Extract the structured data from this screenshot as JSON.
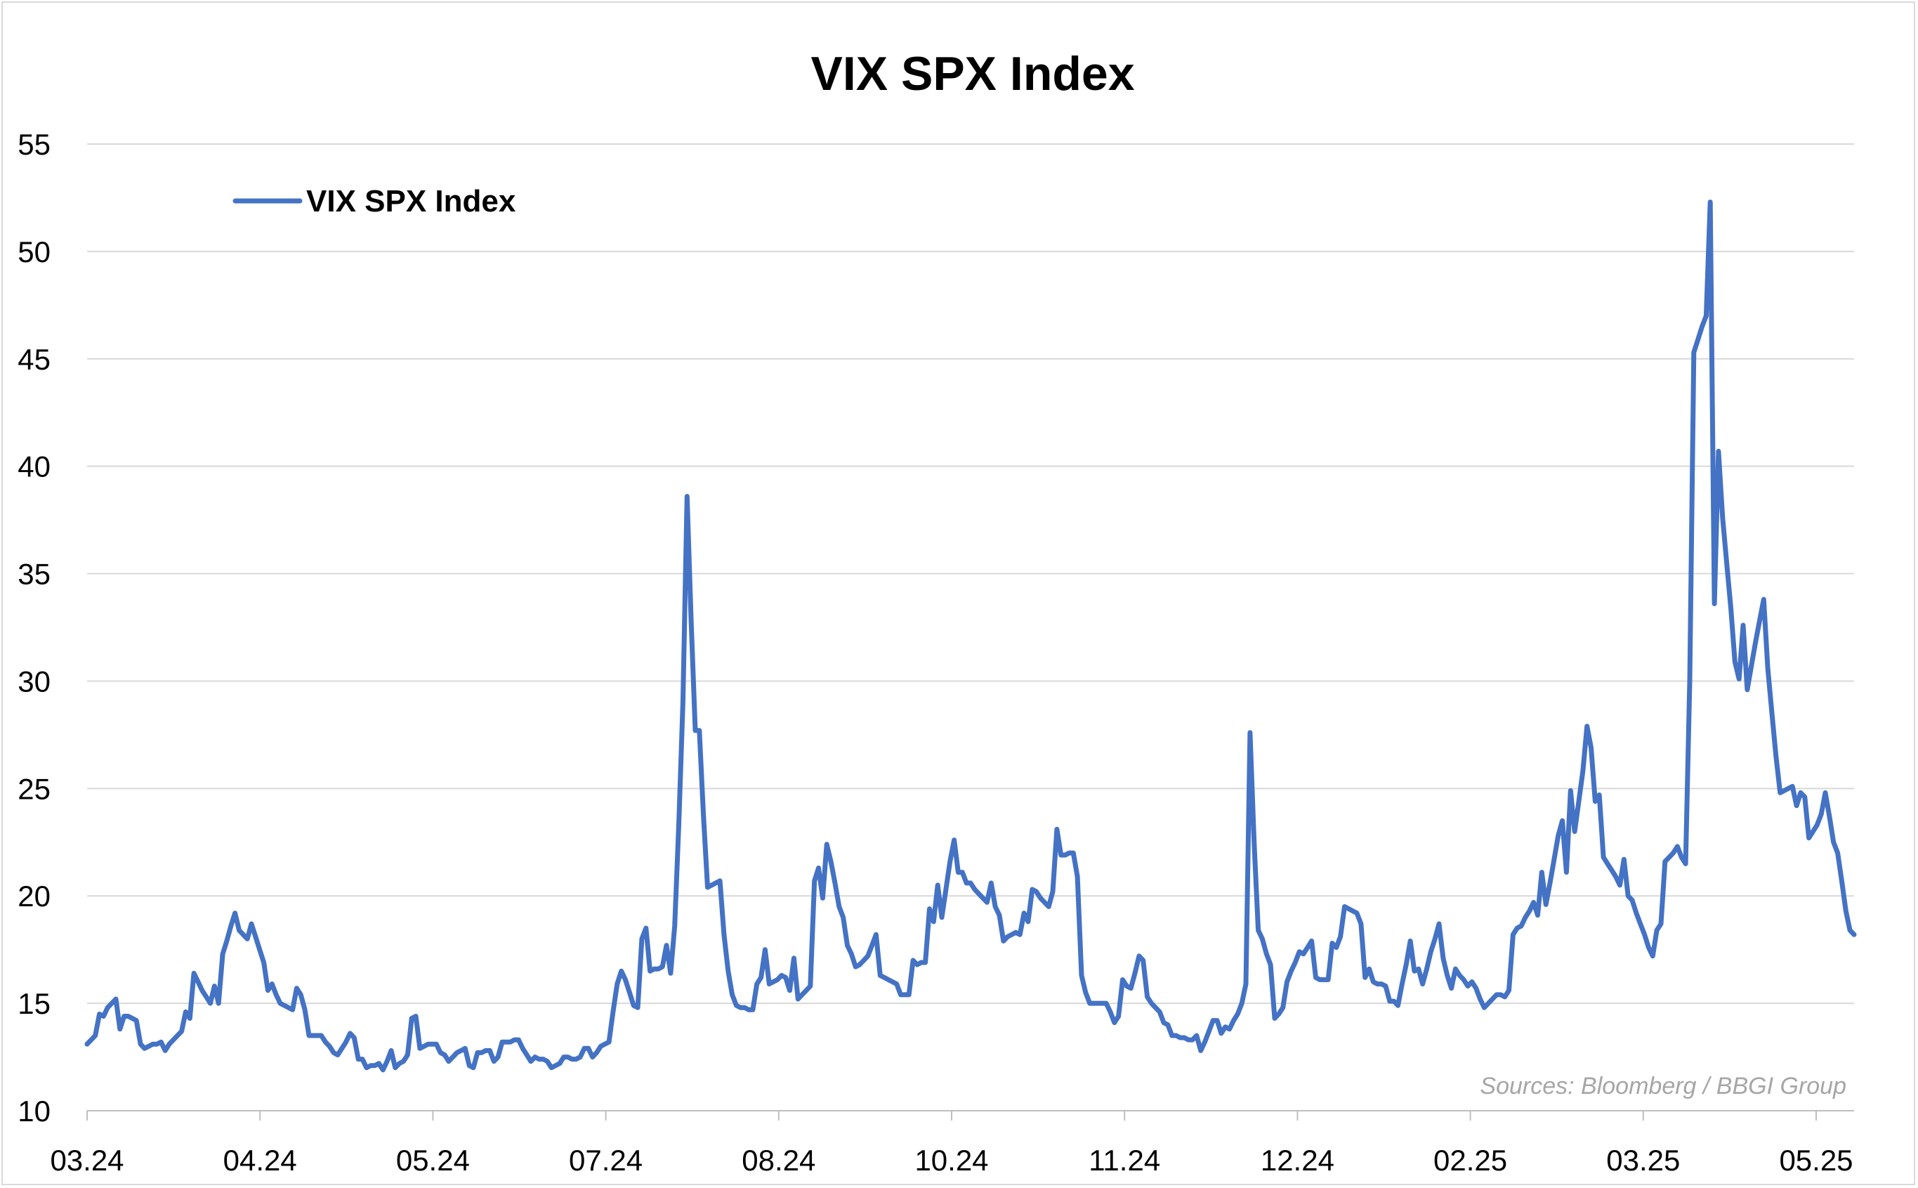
{
  "chart_data": {
    "type": "line",
    "title": "VIX SPX Index",
    "xlabel": "",
    "ylabel": "",
    "ylim": [
      10,
      55
    ],
    "yticks": [
      10,
      15,
      20,
      25,
      30,
      35,
      40,
      45,
      50,
      55
    ],
    "xtick_labels": [
      "03.24",
      "04.24",
      "05.24",
      "07.24",
      "08.24",
      "10.24",
      "11.24",
      "12.24",
      "02.25",
      "03.25",
      "05.25"
    ],
    "grid": "horizontal",
    "legend_position": "top-left",
    "series_color": "#4472C4",
    "series": [
      {
        "name": "VIX SPX Index",
        "values": [
          13.1,
          13.3,
          13.5,
          14.5,
          14.4,
          14.8,
          15.0,
          15.2,
          13.8,
          14.4,
          14.4,
          14.3,
          14.2,
          13.1,
          12.9,
          13.0,
          13.1,
          13.1,
          13.2,
          12.8,
          13.1,
          13.3,
          13.5,
          13.7,
          14.6,
          14.3,
          16.4,
          16.0,
          15.6,
          15.3,
          15.0,
          15.8,
          15.0,
          17.3,
          17.9,
          18.6,
          19.2,
          18.4,
          18.2,
          18.0,
          18.7,
          18.1,
          17.5,
          16.9,
          15.6,
          15.9,
          15.4,
          15.0,
          14.9,
          14.8,
          14.7,
          15.7,
          15.4,
          14.7,
          13.5,
          13.5,
          13.5,
          13.5,
          13.2,
          13.0,
          12.7,
          12.6,
          12.9,
          13.2,
          13.6,
          13.4,
          12.4,
          12.4,
          12.0,
          12.1,
          12.1,
          12.2,
          11.9,
          12.3,
          12.8,
          12.0,
          12.2,
          12.3,
          12.6,
          14.3,
          14.4,
          12.9,
          13.0,
          13.1,
          13.1,
          13.1,
          12.7,
          12.6,
          12.3,
          12.5,
          12.7,
          12.8,
          12.9,
          12.1,
          12.0,
          12.7,
          12.7,
          12.8,
          12.8,
          12.3,
          12.5,
          13.2,
          13.2,
          13.2,
          13.3,
          13.3,
          12.9,
          12.6,
          12.3,
          12.5,
          12.4,
          12.4,
          12.3,
          12.0,
          12.1,
          12.2,
          12.5,
          12.5,
          12.4,
          12.4,
          12.5,
          12.9,
          12.9,
          12.5,
          12.7,
          13.0,
          13.1,
          13.2,
          14.6,
          15.9,
          16.5,
          16.1,
          15.5,
          14.9,
          14.8,
          18.0,
          18.5,
          16.5,
          16.6,
          16.6,
          16.7,
          17.7,
          16.4,
          18.6,
          23.4,
          29.0,
          38.6,
          32.8,
          27.7,
          27.7,
          23.7,
          20.4,
          20.5,
          20.6,
          20.7,
          18.2,
          16.5,
          15.4,
          14.9,
          14.8,
          14.8,
          14.7,
          14.7,
          15.9,
          16.2,
          17.5,
          15.9,
          16.0,
          16.1,
          16.3,
          16.2,
          15.6,
          17.1,
          15.2,
          15.4,
          15.6,
          15.8,
          20.7,
          21.3,
          19.9,
          22.4,
          21.6,
          20.6,
          19.5,
          19.0,
          17.7,
          17.3,
          16.7,
          16.8,
          17.0,
          17.2,
          17.7,
          18.2,
          16.3,
          16.2,
          16.1,
          16.0,
          15.9,
          15.4,
          15.4,
          15.4,
          17.0,
          16.8,
          16.9,
          16.9,
          19.4,
          18.8,
          20.5,
          19.0,
          20.3,
          21.6,
          22.6,
          21.1,
          21.1,
          20.6,
          20.6,
          20.3,
          20.1,
          19.9,
          19.7,
          20.6,
          19.5,
          19.1,
          17.9,
          18.1,
          18.2,
          18.3,
          18.2,
          19.2,
          18.8,
          20.3,
          20.2,
          19.9,
          19.7,
          19.5,
          20.2,
          23.1,
          21.9,
          21.9,
          22.0,
          22.0,
          20.9,
          16.3,
          15.5,
          15.0,
          15.0,
          15.0,
          15.0,
          15.0,
          14.6,
          14.1,
          14.4,
          16.1,
          15.8,
          15.7,
          16.4,
          17.2,
          17.0,
          15.3,
          15.0,
          14.8,
          14.6,
          14.1,
          14.0,
          13.5,
          13.5,
          13.4,
          13.4,
          13.3,
          13.3,
          13.5,
          12.8,
          13.2,
          13.7,
          14.2,
          14.2,
          13.6,
          13.9,
          13.8,
          14.2,
          14.5,
          15.0,
          15.9,
          27.6,
          22.5,
          18.4,
          18.0,
          17.3,
          16.8,
          14.3,
          14.5,
          14.8,
          16.0,
          16.5,
          16.9,
          17.4,
          17.3,
          17.6,
          17.9,
          16.2,
          16.1,
          16.1,
          16.1,
          17.8,
          17.6,
          18.1,
          19.5,
          19.4,
          19.3,
          19.2,
          18.7,
          16.2,
          16.6,
          16.0,
          15.9,
          15.9,
          15.8,
          15.1,
          15.1,
          14.9,
          15.9,
          16.8,
          17.9,
          16.5,
          16.6,
          15.9,
          16.6,
          17.4,
          18.0,
          18.7,
          17.1,
          16.3,
          15.7,
          16.6,
          16.3,
          16.1,
          15.8,
          16.0,
          15.7,
          15.2,
          14.8,
          15.0,
          15.2,
          15.4,
          15.4,
          15.3,
          15.6,
          18.2,
          18.5,
          18.6,
          19.0,
          19.3,
          19.7,
          19.1,
          21.1,
          19.6,
          20.6,
          21.7,
          22.8,
          23.5,
          21.1,
          24.9,
          23.0,
          24.4,
          25.8,
          27.9,
          26.9,
          24.4,
          24.7,
          21.8,
          21.5,
          21.2,
          20.9,
          20.5,
          21.7,
          20.0,
          19.8,
          19.2,
          18.7,
          18.2,
          17.6,
          17.2,
          18.4,
          18.7,
          21.6,
          21.8,
          22.0,
          22.3,
          21.8,
          21.5,
          30.0,
          45.3,
          45.9,
          46.5,
          47.0,
          52.3,
          33.6,
          40.7,
          37.6,
          35.5,
          33.4,
          30.9,
          30.1,
          32.6,
          29.6,
          30.7,
          31.8,
          32.8,
          33.8,
          30.6,
          28.5,
          26.5,
          24.8,
          24.9,
          25.0,
          25.1,
          24.2,
          24.8,
          24.6,
          22.7,
          23.0,
          23.3,
          23.8,
          24.8,
          23.7,
          22.5,
          22.0,
          20.7,
          19.3,
          18.4,
          18.2
        ]
      }
    ],
    "source_note": "Sources: Bloomberg / BBGI Group"
  }
}
